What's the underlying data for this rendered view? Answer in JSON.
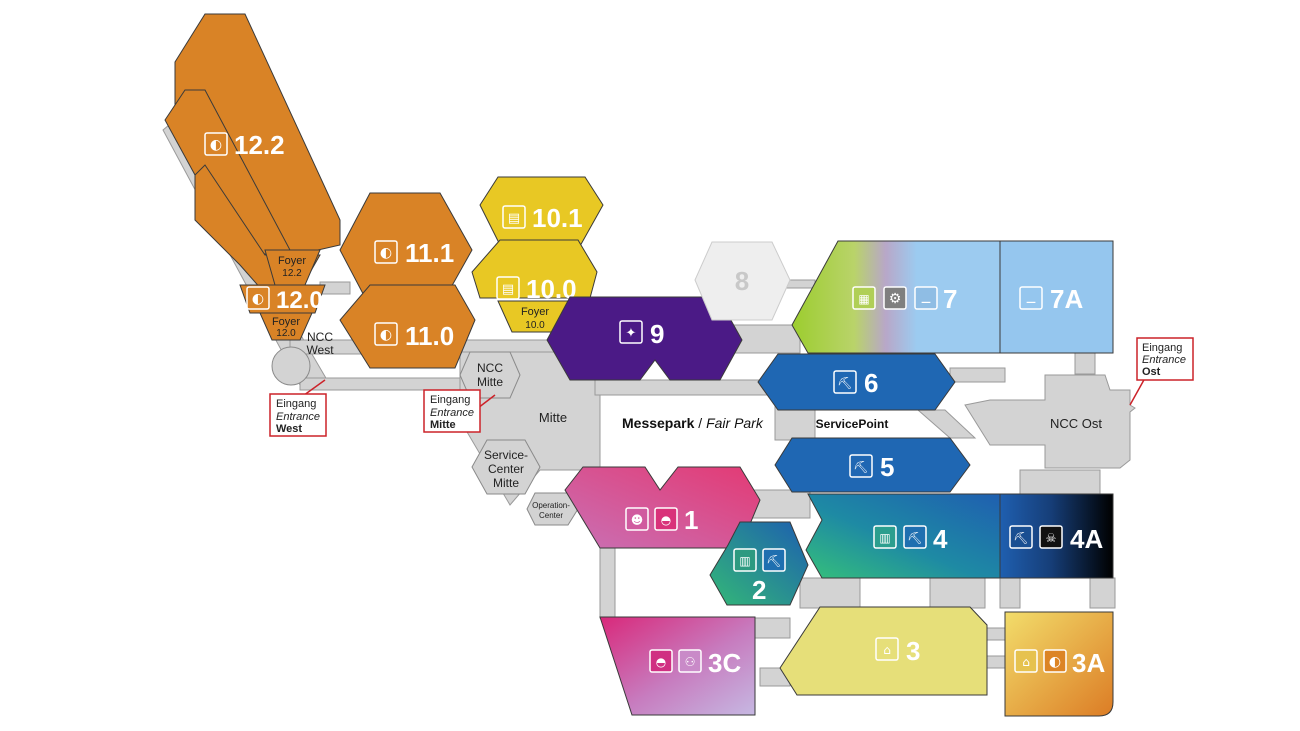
{
  "map": {
    "halls": {
      "h12_2": {
        "label": "12.2",
        "color": "#d98326",
        "icons": [
          "dog-toy-icon"
        ]
      },
      "h12_0": {
        "label": "12.0",
        "color": "#d98326",
        "icons": [
          "dog-toy-icon"
        ]
      },
      "h11_1": {
        "label": "11.1",
        "color": "#d98326",
        "icons": [
          "dog-toy-icon"
        ]
      },
      "h11_0": {
        "label": "11.0",
        "color": "#d98326",
        "icons": [
          "dog-toy-icon"
        ]
      },
      "h10_1": {
        "label": "10.1",
        "color": "#e8c824",
        "icons": [
          "book-icon"
        ]
      },
      "h10_0": {
        "label": "10.0",
        "color": "#e8c824",
        "icons": [
          "book-icon"
        ]
      },
      "h9": {
        "label": "9",
        "color": "#4b1a86",
        "icons": [
          "sparkle-icon"
        ]
      },
      "h8": {
        "label": "8",
        "color": "#eeeeee"
      },
      "h7": {
        "label": "7",
        "color": "#9ccbf0",
        "icons": [
          "machine-icon",
          "gear-icon",
          "conveyor-icon"
        ]
      },
      "h7a": {
        "label": "7A",
        "color": "#95c6ee",
        "icons": [
          "conveyor-icon"
        ]
      },
      "h6": {
        "label": "6",
        "color": "#1f67b3",
        "icons": [
          "excavator-icon"
        ]
      },
      "h5": {
        "label": "5",
        "color": "#1f67b3",
        "icons": [
          "excavator-icon"
        ]
      },
      "h4": {
        "label": "4",
        "color": "#1f67b3",
        "icons": [
          "facade-icon",
          "excavator-icon"
        ]
      },
      "h4a": {
        "label": "4A",
        "color": "#0b0b0b",
        "icons": [
          "excavator-icon",
          "skull-icon"
        ]
      },
      "h1": {
        "label": "1",
        "color": "#d23f8f",
        "icons": [
          "teddy-bear-icon",
          "stroller-icon"
        ]
      },
      "h2": {
        "label": "2",
        "color": "#2a8d84",
        "icons": [
          "facade-icon",
          "excavator-icon"
        ]
      },
      "h3c": {
        "label": "3C",
        "color": "#c44aa2",
        "icons": [
          "stroller-icon",
          "bicycle-icon"
        ]
      },
      "h3": {
        "label": "3",
        "color": "#e6df79",
        "icons": [
          "sofa-icon"
        ]
      },
      "h3a": {
        "label": "3A",
        "color": "#e3a227",
        "icons": [
          "sofa-icon",
          "dog-toy-icon"
        ]
      }
    },
    "foyers": {
      "f12_2": {
        "line1": "Foyer",
        "line2": "12.2"
      },
      "f12_0": {
        "line1": "Foyer",
        "line2": "12.0"
      },
      "f10_0": {
        "line1": "Foyer",
        "line2": "10.0"
      }
    },
    "places": {
      "ncc_west": {
        "line1": "NCC",
        "line2": "West"
      },
      "ncc_mitte": {
        "line1": "NCC",
        "line2": "Mitte"
      },
      "mitte": "Mitte",
      "service_center": {
        "line1": "Service-",
        "line2": "Center",
        "line3": "Mitte"
      },
      "operation_center": {
        "line1": "Operation-",
        "line2": "Center"
      },
      "messepark": {
        "bold": "Messepark",
        "sep": " / ",
        "italic": "Fair Park"
      },
      "service_point": "ServicePoint",
      "ncc_ost": "NCC Ost"
    },
    "entrances": {
      "west": {
        "de": "Eingang",
        "en": "Entrance",
        "name": "West"
      },
      "mitte": {
        "de": "Eingang",
        "en": "Entrance",
        "name": "Mitte"
      },
      "ost": {
        "de": "Eingang",
        "en": "Entrance",
        "name": "Ost"
      }
    },
    "colors": {
      "corridor": "#d3d3d3",
      "callout": "#cc2229"
    }
  }
}
